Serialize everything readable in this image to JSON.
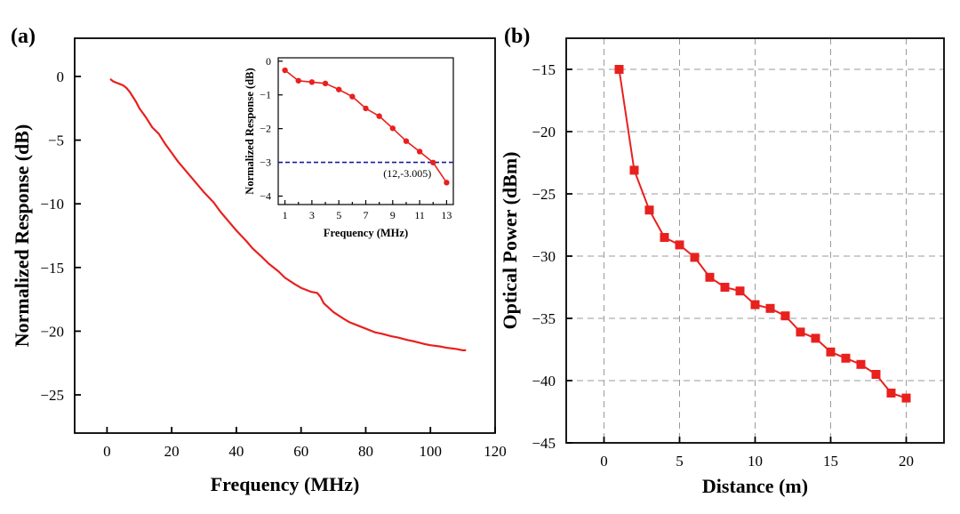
{
  "panel_a_label": "(a)",
  "panel_b_label": "(b)",
  "chart_data": [
    {
      "type": "line",
      "panel": "(a)",
      "xlabel": "Frequency (MHz)",
      "ylabel": "Normalized Response (dB)",
      "xlim": [
        -10,
        120
      ],
      "ylim": [
        -28,
        3
      ],
      "xticks": [
        0,
        20,
        40,
        60,
        80,
        100,
        120
      ],
      "yticks": [
        0,
        -5,
        -10,
        -15,
        -20,
        -25
      ],
      "grid": false,
      "line_color": "#e8201e",
      "series": [
        {
          "x": [
            1,
            2,
            3,
            4,
            5,
            6,
            7,
            8,
            9,
            10,
            12,
            14,
            16,
            18,
            20,
            22,
            25,
            28,
            30,
            33,
            35,
            38,
            40,
            43,
            45,
            48,
            50,
            53,
            55,
            58,
            60,
            63,
            65,
            66,
            67,
            70,
            73,
            75,
            78,
            80,
            83,
            85,
            88,
            90,
            93,
            95,
            98,
            100,
            103,
            105,
            108,
            110,
            111
          ],
          "y": [
            -0.2,
            -0.4,
            -0.5,
            -0.6,
            -0.7,
            -0.9,
            -1.2,
            -1.6,
            -2.0,
            -2.5,
            -3.2,
            -4.0,
            -4.5,
            -5.3,
            -6.0,
            -6.7,
            -7.6,
            -8.5,
            -9.1,
            -9.9,
            -10.6,
            -11.5,
            -12.1,
            -12.9,
            -13.5,
            -14.2,
            -14.7,
            -15.3,
            -15.8,
            -16.3,
            -16.6,
            -16.9,
            -17.0,
            -17.3,
            -17.8,
            -18.5,
            -19.0,
            -19.3,
            -19.6,
            -19.8,
            -20.1,
            -20.2,
            -20.4,
            -20.5,
            -20.7,
            -20.8,
            -21.0,
            -21.1,
            -21.2,
            -21.3,
            -21.4,
            -21.5,
            -21.5
          ]
        }
      ]
    },
    {
      "type": "line",
      "panel": "(a) inset",
      "xlabel": "Frequency (MHz)",
      "ylabel": "Normalized Response (dB)",
      "xlim": [
        0.5,
        13.5
      ],
      "ylim": [
        -4.25,
        0.1
      ],
      "xticks": [
        1,
        3,
        5,
        7,
        9,
        11,
        13
      ],
      "xticks_minor": [
        2,
        4,
        6,
        8,
        10,
        12
      ],
      "yticks": [
        0,
        -1,
        -2,
        -3,
        -4
      ],
      "grid": false,
      "line_color": "#e8201e",
      "marker": "circle",
      "series": [
        {
          "x": [
            1,
            2,
            3,
            4,
            5,
            6,
            7,
            8,
            9,
            10,
            11,
            12,
            13
          ],
          "y": [
            -0.27,
            -0.58,
            -0.62,
            -0.66,
            -0.84,
            -1.05,
            -1.4,
            -1.63,
            -1.99,
            -2.37,
            -2.68,
            -3.005,
            -3.6
          ]
        }
      ],
      "reference_line": {
        "y": -3,
        "style": "dashed",
        "color": "#1a1aa0"
      },
      "annotation": {
        "text": "(12,-3.005)",
        "x": 12,
        "y": -3.005
      }
    },
    {
      "type": "line",
      "panel": "(b)",
      "xlabel": "Distance (m)",
      "ylabel": "Optical Power (dBm)",
      "xlim": [
        -2.5,
        22.5
      ],
      "ylim": [
        -45,
        -12.5
      ],
      "xticks": [
        0,
        5,
        10,
        15,
        20
      ],
      "yticks": [
        -15,
        -20,
        -25,
        -30,
        -35,
        -40,
        -45
      ],
      "grid": true,
      "line_color": "#e8201e",
      "marker": "square",
      "series": [
        {
          "x": [
            1,
            2,
            3,
            4,
            5,
            6,
            7,
            8,
            9,
            10,
            11,
            12,
            13,
            14,
            15,
            16,
            17,
            18,
            19,
            20
          ],
          "y": [
            -15.0,
            -23.1,
            -26.3,
            -28.5,
            -29.1,
            -30.1,
            -31.7,
            -32.5,
            -32.8,
            -33.9,
            -34.2,
            -34.8,
            -36.1,
            -36.6,
            -37.7,
            -38.2,
            -38.7,
            -39.5,
            -41.0,
            -41.4
          ]
        }
      ]
    }
  ]
}
